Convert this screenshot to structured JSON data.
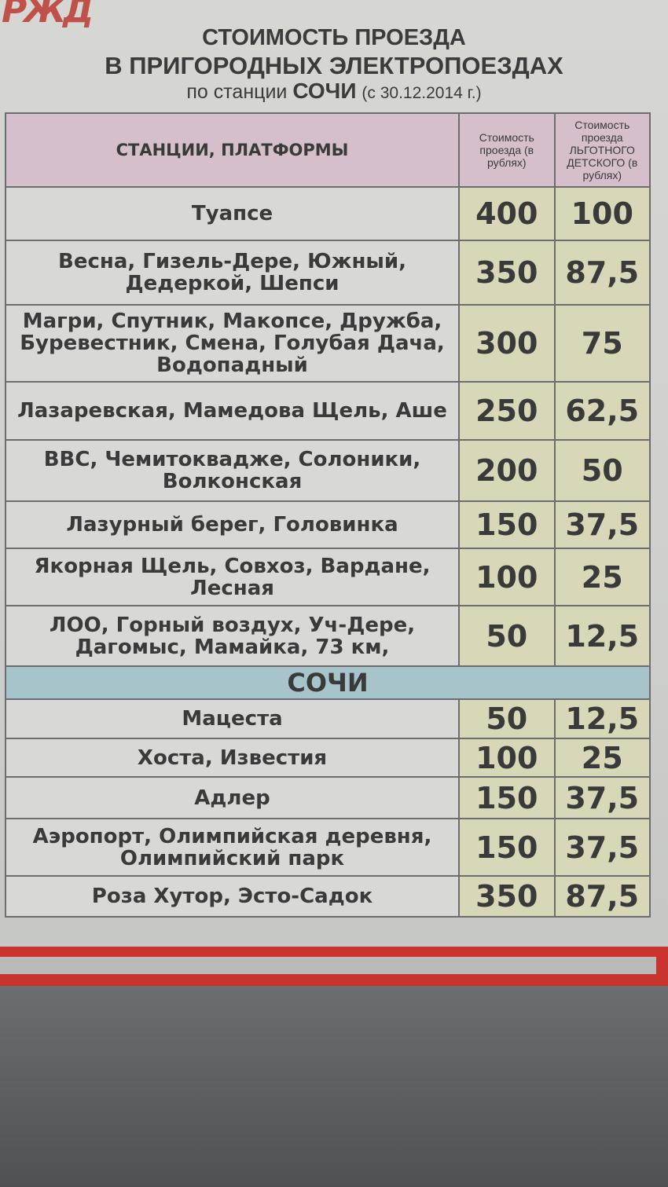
{
  "logo_text": "РЖД",
  "title": {
    "line1": "СТОИМОСТЬ ПРОЕЗДА",
    "line2": "В ПРИГОРОДНЫХ ЭЛЕКТРОПОЕЗДАХ",
    "line3_prefix": "по станции",
    "line3_station": "СОЧИ",
    "line3_date": "(с 30.12.2014 г.)"
  },
  "table": {
    "headers": {
      "stations": "СТАНЦИИ, ПЛАТФОРМЫ",
      "fare": "Стоимость проезда (в рублях)",
      "child_fare": "Стоимость проезда ЛЬГОТНОГО ДЕТСКОГО (в рублях)"
    },
    "rows_before": [
      {
        "stations": "Туапсе",
        "fare": "400",
        "child": "100"
      },
      {
        "stations": "Весна, Гизель-Дере, Южный, Дедеркой, Шепси",
        "fare": "350",
        "child": "87,5"
      },
      {
        "stations": "Магри, Спутник, Макопсе, Дружба, Буревестник, Смена, Голубая Дача, Водопадный",
        "fare": "300",
        "child": "75"
      },
      {
        "stations": "Лазаревская, Мамедова Щель, Аше",
        "fare": "250",
        "child": "62,5"
      },
      {
        "stations": "ВВС, Чемитоквадже, Солоники, Волконская",
        "fare": "200",
        "child": "50"
      },
      {
        "stations": "Лазурный берег, Головинка",
        "fare": "150",
        "child": "37,5"
      },
      {
        "stations": "Якорная Щель, Совхоз, Вардане, Лесная",
        "fare": "100",
        "child": "25"
      },
      {
        "stations": "ЛОО, Горный воздух, Уч-Дере, Дагомыс, Мамайка, 73 км,",
        "fare": "50",
        "child": "12,5"
      }
    ],
    "divider": "СОЧИ",
    "rows_after": [
      {
        "stations": "Мацеста",
        "fare": "50",
        "child": "12,5"
      },
      {
        "stations": "Хоста, Известия",
        "fare": "100",
        "child": "25"
      },
      {
        "stations": "Адлер",
        "fare": "150",
        "child": "37,5"
      },
      {
        "stations": "Аэропорт, Олимпийская деревня, Олимпийский парк",
        "fare": "150",
        "child": "37,5"
      },
      {
        "stations": "Роза Хутор, Эсто-Садок",
        "fare": "350",
        "child": "87,5"
      }
    ]
  }
}
